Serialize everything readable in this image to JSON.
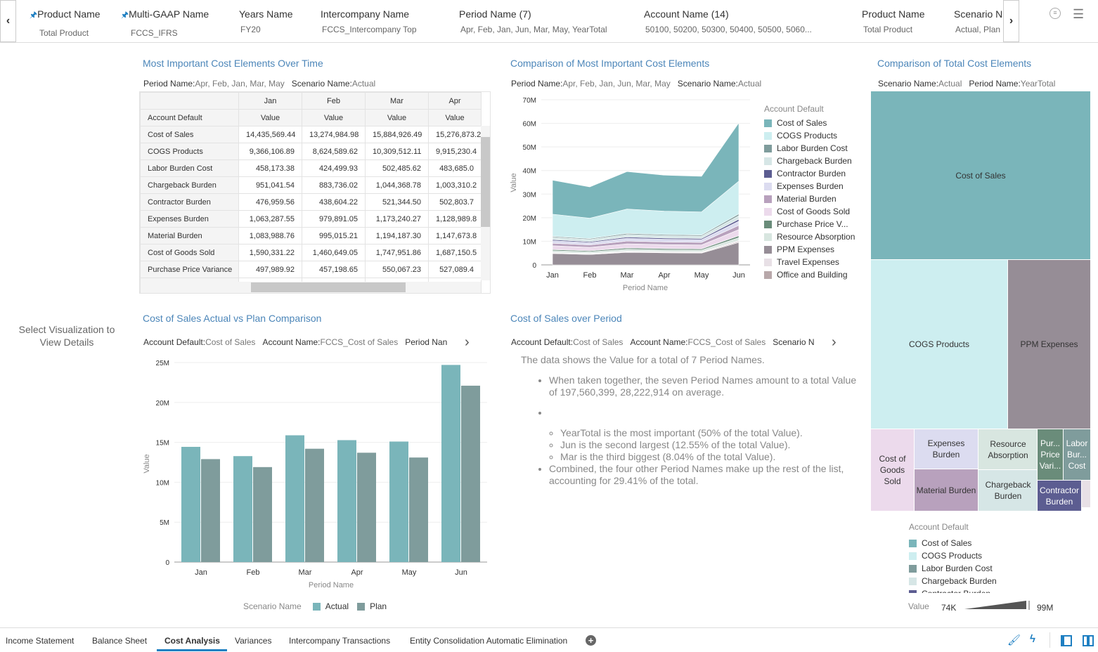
{
  "filters": [
    {
      "name": "Product Name",
      "value": "Total Product",
      "pinned": true
    },
    {
      "name": "Multi-GAAP Name",
      "value": "FCCS_IFRS",
      "pinned": true
    },
    {
      "name": "Years Name",
      "value": "FY20"
    },
    {
      "name": "Intercompany Name",
      "value": "FCCS_Intercompany Top"
    },
    {
      "name": "Period Name (7)",
      "value": "Apr, Feb, Jan, Jun, Mar, May, YearTotal"
    },
    {
      "name": "Account Name (14)",
      "value": "50100, 50200, 50300, 50400, 50500, 5060..."
    },
    {
      "name": "Product Name",
      "value": "Total Product"
    },
    {
      "name": "Scenario N",
      "value": "Actual, Plan"
    }
  ],
  "left_panel": {
    "hint": "Select Visualization to View Details"
  },
  "colors": {
    "Cost of Sales": "#7ab5ba",
    "COGS Products": "#cdeef0",
    "Labor Burden Cost": "#7f9c9c",
    "Chargeback Burden": "#d6e6e6",
    "Contractor Burden": "#5c5d91",
    "Expenses Burden": "#dcdcf0",
    "Material Burden": "#b8a1bd",
    "Cost of Goods Sold": "#ecdaec",
    "Purchase Price V...": "#6a8c7a",
    "Resource Absorption": "#d8e6e0",
    "PPM Expenses": "#968d96",
    "Travel Expenses": "#e8e0e6",
    "Office and Building": "#b8a8aa",
    "accent": "#4c86b9",
    "plan": "#7f9c9c"
  },
  "table_panel": {
    "title": "Most Important Cost Elements Over Time",
    "sub": [
      {
        "k": "Period Name:",
        "v": "Apr, Feb, Jan, Mar, May"
      },
      {
        "k": "Scenario Name:",
        "v": "Actual"
      }
    ],
    "row_header": "Account Default",
    "columns": [
      "Jan",
      "Feb",
      "Mar",
      "Apr"
    ],
    "measure": "Value",
    "rows": [
      [
        "Cost of Sales",
        "14,435,569.44",
        "13,274,984.98",
        "15,884,926.49",
        "15,276,873.2"
      ],
      [
        "COGS Products",
        "9,366,106.89",
        "8,624,589.62",
        "10,309,512.11",
        "9,915,230.4"
      ],
      [
        "Labor Burden Cost",
        "458,173.38",
        "424,499.93",
        "502,485.62",
        "483,685.0"
      ],
      [
        "Chargeback Burden",
        "951,041.54",
        "883,736.02",
        "1,044,368.78",
        "1,003,310.2"
      ],
      [
        "Contractor Burden",
        "476,959.56",
        "438,604.22",
        "521,344.50",
        "502,803.7"
      ],
      [
        "Expenses Burden",
        "1,063,287.55",
        "979,891.05",
        "1,173,240.27",
        "1,128,989.8"
      ],
      [
        "Material Burden",
        "1,083,988.76",
        "995,015.21",
        "1,194,187.30",
        "1,147,673.8"
      ],
      [
        "Cost of Goods Sold",
        "1,590,331.22",
        "1,460,649.05",
        "1,747,951.86",
        "1,687,150.5"
      ],
      [
        "Purchase Price Variance",
        "497,989.92",
        "457,198.65",
        "550,067.23",
        "527,089.4"
      ]
    ]
  },
  "area_panel": {
    "title": "Comparison of Most Important Cost Elements",
    "sub": [
      {
        "k": "Period Name:",
        "v": "Apr, Feb, Jan, Jun, Mar, May"
      },
      {
        "k": "Scenario Name:",
        "v": "Actual"
      }
    ]
  },
  "treemap_panel": {
    "title": "Comparison of Total Cost Elements",
    "sub": [
      {
        "k": "Scenario Name:",
        "v": "Actual"
      },
      {
        "k": "Period Name:",
        "v": "YearTotal"
      }
    ],
    "cells": [
      "Cost of Sales",
      "COGS Products",
      "PPM Expenses",
      "Cost of Goods Sold",
      "Expenses Burden",
      "Material Burden",
      "Resource Absorption",
      "Chargeback Burden",
      "Pur... Price Vari...",
      "Labor Bur... Cost",
      "Contractor Burden"
    ],
    "legend_title": "Account Default",
    "legend": [
      "Cost of Sales",
      "COGS Products",
      "Labor Burden Cost",
      "Chargeback Burden",
      "Contractor Burden"
    ],
    "value_label": "Value",
    "value_min": "74K",
    "value_max": "99M"
  },
  "bar_panel": {
    "title": "Cost of Sales Actual vs Plan Comparison",
    "sub": [
      {
        "k": "Account Default:",
        "v": "Cost of Sales"
      },
      {
        "k": "Account Name:",
        "v": "FCCS_Cost of Sales"
      },
      {
        "k": "Period Nan",
        "v": ""
      }
    ]
  },
  "narrative_panel": {
    "title": "Cost of Sales over Period",
    "sub": [
      {
        "k": "Account Default:",
        "v": "Cost of Sales"
      },
      {
        "k": "Account Name:",
        "v": "FCCS_Cost of Sales"
      },
      {
        "k": "Scenario N",
        "v": ""
      }
    ],
    "intro": "The data shows the Value for a total of 7 Period Names.",
    "b1": "When taken together, the seven Period Names amount to a total Value of 197,560,399, 28,222,914 on average.",
    "s1": "YearTotal is the most important (50% of the total Value).",
    "s2": "Jun is the second largest (12.55% of the total Value).",
    "s3": "Mar is the third biggest (8.04% of the total Value).",
    "b3": "Combined, the four other Period Names make up the rest of the list, accounting for 29.41% of the total."
  },
  "chart_data": [
    {
      "type": "area",
      "stacked": true,
      "categories": [
        "Jan",
        "Feb",
        "Mar",
        "Apr",
        "May",
        "Jun"
      ],
      "xlabel": "Period Name",
      "ylabel": "Value",
      "ylim": [
        0,
        70000000
      ],
      "yticks": [
        "0",
        "10M",
        "20M",
        "30M",
        "40M",
        "50M",
        "60M",
        "70M"
      ],
      "legend_title": "Account Default",
      "legend": "right",
      "grid": true,
      "series": [
        {
          "name": "Cost of Sales",
          "values": [
            14435569,
            13274985,
            15884926,
            15276873,
            15100000,
            24700000
          ]
        },
        {
          "name": "COGS Products",
          "values": [
            9366107,
            8624590,
            10309512,
            9915230,
            9800000,
            13900000
          ]
        },
        {
          "name": "Labor Burden Cost",
          "values": [
            458173,
            424500,
            502486,
            483685,
            480000,
            750000
          ]
        },
        {
          "name": "Chargeback Burden",
          "values": [
            951042,
            883736,
            1044369,
            1003310,
            990000,
            1500000
          ]
        },
        {
          "name": "Contractor Burden",
          "values": [
            476960,
            438604,
            521345,
            502804,
            500000,
            800000
          ]
        },
        {
          "name": "Expenses Burden",
          "values": [
            1063288,
            979891,
            1173240,
            1128990,
            1120000,
            1800000
          ]
        },
        {
          "name": "Material Burden",
          "values": [
            1083989,
            995015,
            1194187,
            1147674,
            1130000,
            1800000
          ]
        },
        {
          "name": "Cost of Goods Sold",
          "values": [
            1590331,
            1460649,
            1747952,
            1687151,
            1660000,
            2600000
          ]
        },
        {
          "name": "Purchase Price V...",
          "values": [
            497990,
            457199,
            550067,
            527089,
            520000,
            800000
          ]
        },
        {
          "name": "Resource Absorption",
          "values": [
            700000,
            650000,
            770000,
            740000,
            730000,
            1200000
          ]
        },
        {
          "name": "PPM Expenses",
          "values": [
            4800000,
            4400000,
            5300000,
            5100000,
            5000000,
            9500000
          ]
        },
        {
          "name": "Travel Expenses",
          "values": [
            300000,
            280000,
            330000,
            320000,
            310000,
            500000
          ]
        },
        {
          "name": "Office and Building",
          "values": [
            200000,
            190000,
            220000,
            210000,
            210000,
            350000
          ]
        }
      ]
    },
    {
      "type": "bar",
      "categories": [
        "Jan",
        "Feb",
        "Mar",
        "Apr",
        "May",
        "Jun"
      ],
      "xlabel": "Period Name",
      "ylabel": "Value",
      "ylim": [
        0,
        25000000
      ],
      "yticks": [
        "0",
        "5M",
        "10M",
        "15M",
        "20M",
        "25M"
      ],
      "legend_title": "Scenario Name",
      "legend": "bottom",
      "grid": true,
      "series": [
        {
          "name": "Actual",
          "values": [
            14435569,
            13274985,
            15884926,
            15276873,
            15100000,
            24700000
          ]
        },
        {
          "name": "Plan",
          "values": [
            12900000,
            11900000,
            14200000,
            13700000,
            13100000,
            22100000
          ]
        }
      ]
    }
  ],
  "tabs": [
    {
      "label": "Income Statement"
    },
    {
      "label": "Balance Sheet"
    },
    {
      "label": "Cost Analysis",
      "active": true
    },
    {
      "label": "Variances"
    },
    {
      "label": "Intercompany Transactions"
    },
    {
      "label": "Entity Consolidation Automatic Elimination"
    }
  ]
}
